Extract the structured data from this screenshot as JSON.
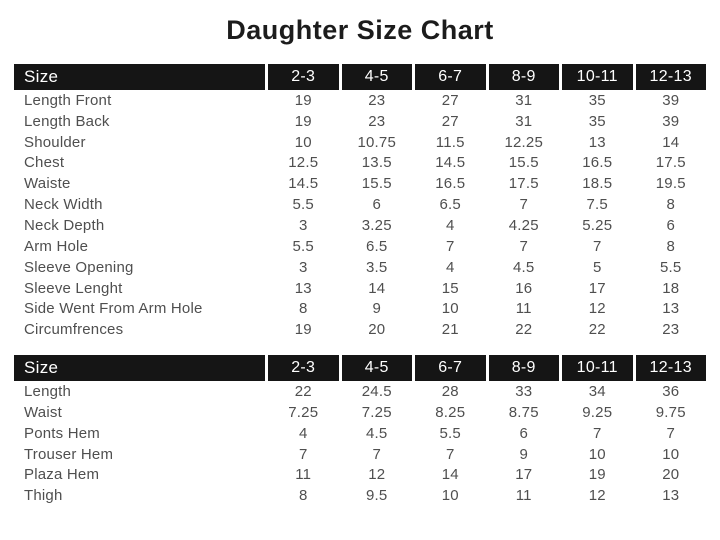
{
  "title": "Daughter Size Chart",
  "header_label": "Size",
  "columns": [
    "2-3",
    "4-5",
    "6-7",
    "8-9",
    "10-11",
    "12-13"
  ],
  "colors": {
    "header_bg": "#151515",
    "header_text": "#ffffff",
    "body_text": "#4f4f4f",
    "title": "#1c1c1c"
  },
  "tables": [
    {
      "name": "top-size-table",
      "rows": [
        {
          "label": "Length Front",
          "values": [
            "19",
            "23",
            "27",
            "31",
            "35",
            "39"
          ]
        },
        {
          "label": "Length Back",
          "values": [
            "19",
            "23",
            "27",
            "31",
            "35",
            "39"
          ]
        },
        {
          "label": "Shoulder",
          "values": [
            "10",
            "10.75",
            "11.5",
            "12.25",
            "13",
            "14"
          ]
        },
        {
          "label": "Chest",
          "values": [
            "12.5",
            "13.5",
            "14.5",
            "15.5",
            "16.5",
            "17.5"
          ]
        },
        {
          "label": "Waiste",
          "values": [
            "14.5",
            "15.5",
            "16.5",
            "17.5",
            "18.5",
            "19.5"
          ]
        },
        {
          "label": "Neck Width",
          "values": [
            "5.5",
            "6",
            "6.5",
            "7",
            "7.5",
            "8"
          ]
        },
        {
          "label": "Neck Depth",
          "values": [
            "3",
            "3.25",
            "4",
            "4.25",
            "5.25",
            "6"
          ]
        },
        {
          "label": "Arm Hole",
          "values": [
            "5.5",
            "6.5",
            "7",
            "7",
            "7",
            "8"
          ]
        },
        {
          "label": "Sleeve Opening",
          "values": [
            "3",
            "3.5",
            "4",
            "4.5",
            "5",
            "5.5"
          ]
        },
        {
          "label": "Sleeve Lenght",
          "values": [
            "13",
            "14",
            "15",
            "16",
            "17",
            "18"
          ]
        },
        {
          "label": "Side Went From Arm Hole",
          "values": [
            "8",
            "9",
            "10",
            "11",
            "12",
            "13"
          ]
        },
        {
          "label": "Circumfrences",
          "values": [
            "19",
            "20",
            "21",
            "22",
            "22",
            "23"
          ]
        }
      ]
    },
    {
      "name": "bottom-size-table",
      "rows": [
        {
          "label": "Length",
          "values": [
            "22",
            "24.5",
            "28",
            "33",
            "34",
            "36"
          ]
        },
        {
          "label": "Waist",
          "values": [
            "7.25",
            "7.25",
            "8.25",
            "8.75",
            "9.25",
            "9.75"
          ]
        },
        {
          "label": "Ponts Hem",
          "values": [
            "4",
            "4.5",
            "5.5",
            "6",
            "7",
            "7"
          ]
        },
        {
          "label": "Trouser Hem",
          "values": [
            "7",
            "7",
            "7",
            "9",
            "10",
            "10"
          ]
        },
        {
          "label": "Plaza Hem",
          "values": [
            "11",
            "12",
            "14",
            "17",
            "19",
            "20"
          ]
        },
        {
          "label": "Thigh",
          "values": [
            "8",
            "9.5",
            "10",
            "11",
            "12",
            "13"
          ]
        }
      ]
    }
  ]
}
